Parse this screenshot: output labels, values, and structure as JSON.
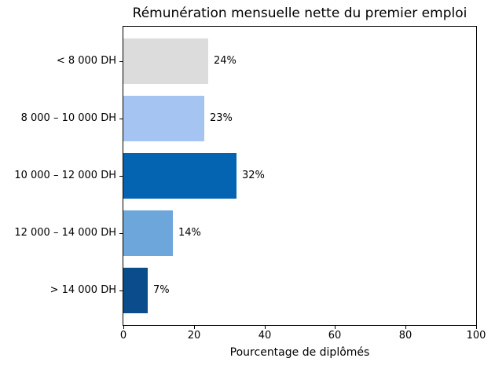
{
  "title": "Rémunération mensuelle nette du premier emploi",
  "chart_data": {
    "type": "bar",
    "orientation": "horizontal",
    "title": "Rémunération mensuelle nette du premier emploi",
    "categories": [
      "< 8 000 DH",
      "8 000 – 10 000 DH",
      "10 000 – 12 000 DH",
      "12 000 – 14 000 DH",
      "> 14 000 DH"
    ],
    "values": [
      24,
      23,
      32,
      14,
      7
    ],
    "value_labels": [
      "24%",
      "23%",
      "32%",
      "14%",
      "7%"
    ],
    "bar_colors": [
      "#dcdcdc",
      "#a6c4f2",
      "#0564b1",
      "#6da6db",
      "#0b4d8c"
    ],
    "xlabel": "Pourcentage de diplômés",
    "ylabel": "",
    "xlim": [
      0,
      100
    ],
    "xticks": [
      0,
      20,
      40,
      60,
      80,
      100
    ],
    "grid": false,
    "legend": null,
    "background_color": "#ffffff",
    "axis_color": "#000000"
  }
}
